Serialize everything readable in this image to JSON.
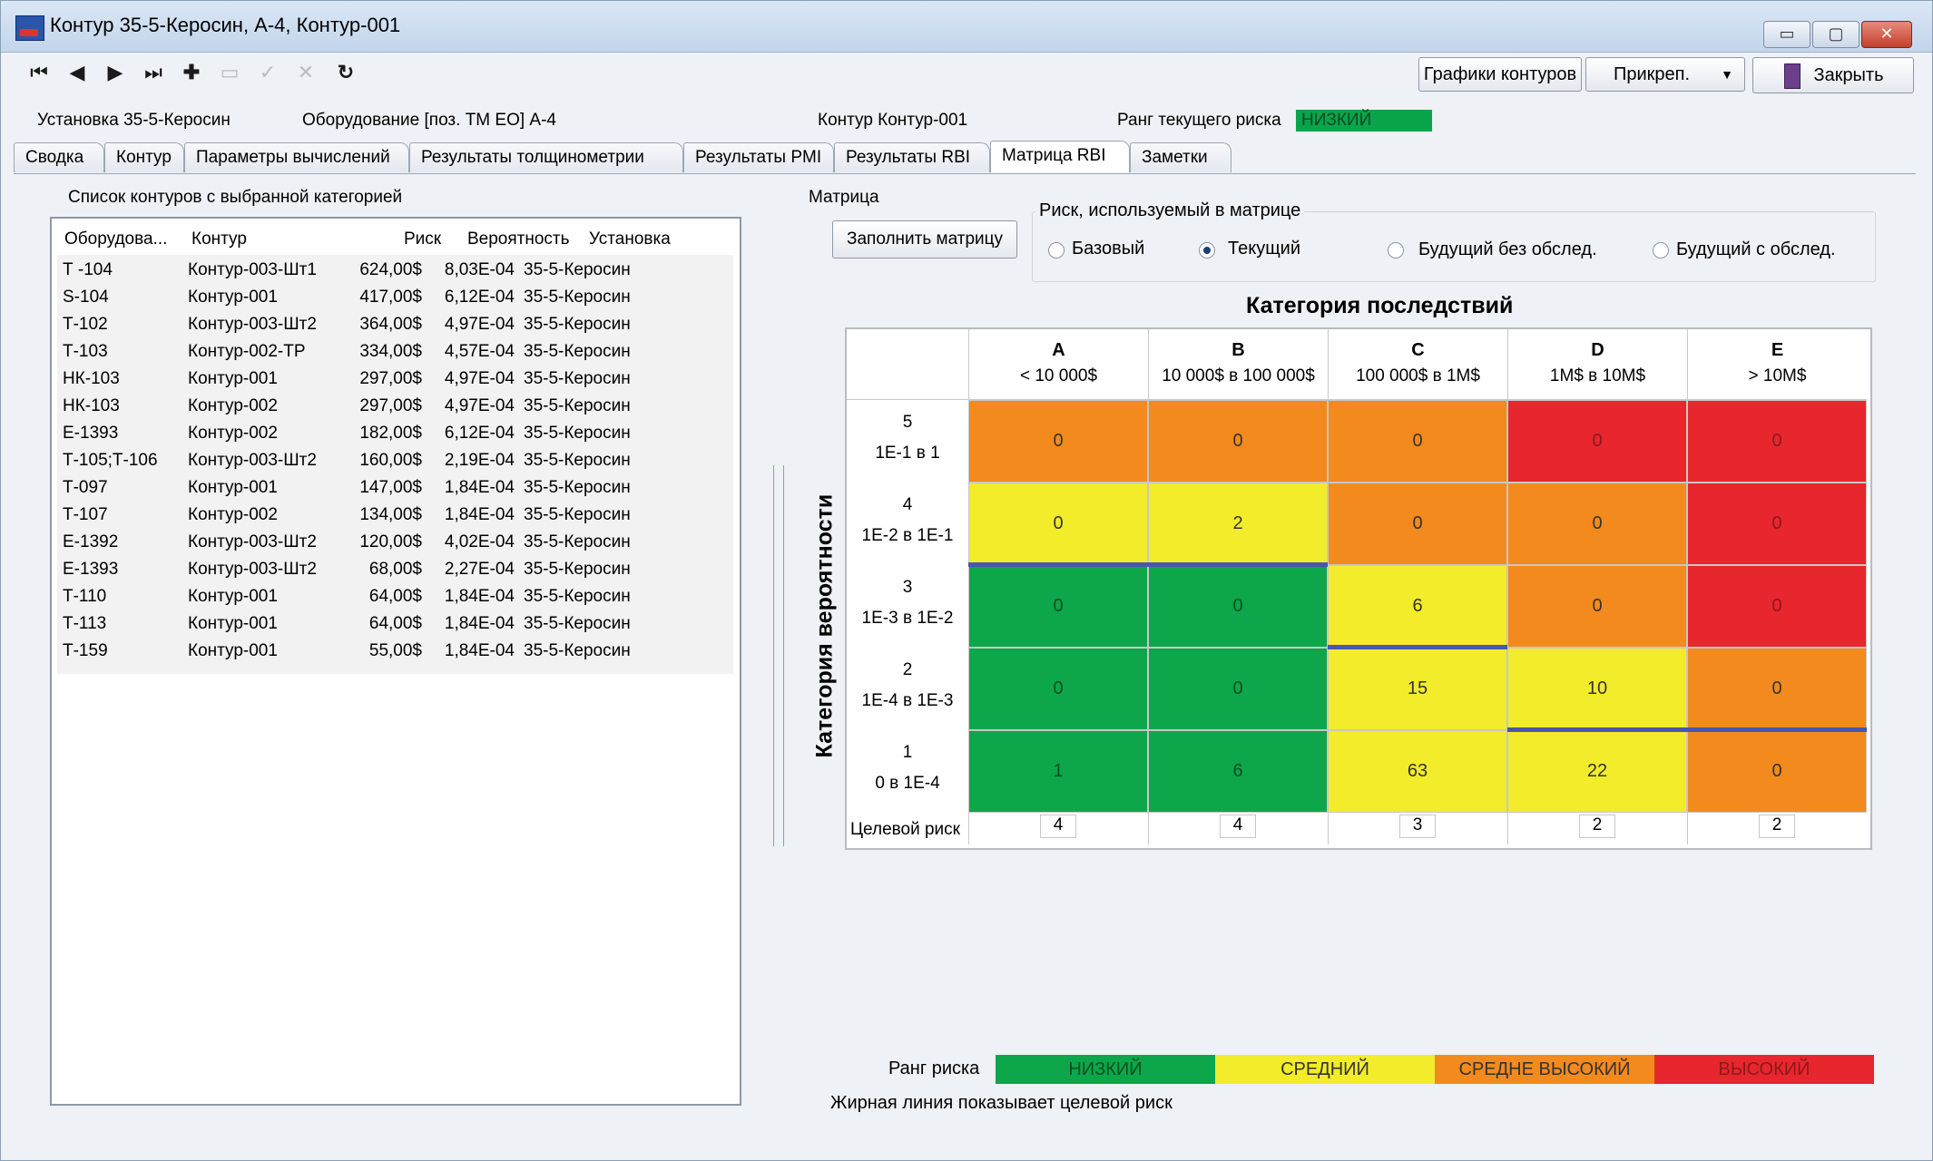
{
  "window": {
    "title": "Контур 35-5-Керосин, А-4, Контур-001",
    "controls": [
      "▭",
      "▢",
      "✕"
    ]
  },
  "toolbar": {
    "icons": [
      "first-icon",
      "prev-icon",
      "next-icon",
      "last-icon",
      "add-icon",
      "remove-icon",
      "confirm-icon",
      "cancel-icon",
      "refresh-icon"
    ],
    "charts_label": "Графики контуров",
    "attach_label": "Прикреп.",
    "close_label": "Закрыть"
  },
  "info": {
    "install": "Установка 35-5-Керосин",
    "equipment": "Оборудование [поз. ТМ ЕО] А-4",
    "contour": "Контур Контур-001",
    "risk_rank_label": "Ранг текущего риска",
    "risk_rank_value": "НИЗКИЙ"
  },
  "tabs": [
    "Сводка",
    "Контур",
    "Параметры вычислений",
    "Результаты толщинометрии",
    "Результаты PMI",
    "Результаты RBI",
    "Матрица RBI",
    "Заметки"
  ],
  "active_tab": "Матрица RBI",
  "list": {
    "title": "Список контуров с выбранной категорией",
    "headers": [
      "Оборудова...",
      "Контур",
      "Риск",
      "Вероятность",
      "Установка"
    ],
    "rows": [
      [
        "Т -104",
        "Контур-003-Шт1",
        "624,00$",
        "8,03E-04",
        "35-5-Керосин"
      ],
      [
        "S-104",
        "Контур-001",
        "417,00$",
        "6,12E-04",
        "35-5-Керосин"
      ],
      [
        "Т-102",
        "Контур-003-Шт2",
        "364,00$",
        "4,97E-04",
        "35-5-Керосин"
      ],
      [
        "Т-103",
        "Контур-002-ТР",
        "334,00$",
        "4,57E-04",
        "35-5-Керосин"
      ],
      [
        "НК-103",
        "Контур-001",
        "297,00$",
        "4,97E-04",
        "35-5-Керосин"
      ],
      [
        "НК-103",
        "Контур-002",
        "297,00$",
        "4,97E-04",
        "35-5-Керосин"
      ],
      [
        "Е-1393",
        "Контур-002",
        "182,00$",
        "6,12E-04",
        "35-5-Керосин"
      ],
      [
        "Т-105;Т-106",
        "Контур-003-Шт2",
        "160,00$",
        "2,19E-04",
        "35-5-Керосин"
      ],
      [
        "Т-097",
        "Контур-001",
        "147,00$",
        "1,84E-04",
        "35-5-Керосин"
      ],
      [
        "Т-107",
        "Контур-002",
        "134,00$",
        "1,84E-04",
        "35-5-Керосин"
      ],
      [
        "Е-1392",
        "Контур-003-Шт2",
        "120,00$",
        "4,02E-04",
        "35-5-Керосин"
      ],
      [
        "Е-1393",
        "Контур-003-Шт2",
        "68,00$",
        "2,27E-04",
        "35-5-Керосин"
      ],
      [
        "Т-110",
        "Контур-001",
        "64,00$",
        "1,84E-04",
        "35-5-Керосин"
      ],
      [
        "Т-113",
        "Контур-001",
        "64,00$",
        "1,84E-04",
        "35-5-Керосин"
      ],
      [
        "Т-159",
        "Контур-001",
        "55,00$",
        "1,84E-04",
        "35-5-Керосин"
      ]
    ]
  },
  "matrix_panel": {
    "title": "Матрица",
    "fill_button": "Заполнить матрицу",
    "risk_group_title": "Риск, используемый в матрице",
    "radios": [
      {
        "label": "Базовый",
        "checked": false
      },
      {
        "label": "Текущий",
        "checked": true
      },
      {
        "label": "Будущий без обслед.",
        "checked": false
      },
      {
        "label": "Будущий с обслед.",
        "checked": false
      }
    ],
    "consequence_title": "Категория последствий",
    "probability_title": "Категория вероятности",
    "columns": [
      {
        "letter": "A",
        "range": "< 10 000$"
      },
      {
        "letter": "B",
        "range": "10 000$ в 100 000$"
      },
      {
        "letter": "C",
        "range": "100 000$ в 1M$"
      },
      {
        "letter": "D",
        "range": "1M$ в 10M$"
      },
      {
        "letter": "E",
        "range": "> 10M$"
      }
    ],
    "rows": [
      {
        "num": "5",
        "range": "1E-1 в 1",
        "values": [
          "0",
          "0",
          "0",
          "0",
          "0"
        ],
        "levels": [
          "mh",
          "mh",
          "mh",
          "h",
          "h"
        ]
      },
      {
        "num": "4",
        "range": "1E-2 в 1E-1",
        "values": [
          "0",
          "2",
          "0",
          "0",
          "0"
        ],
        "levels": [
          "m",
          "m",
          "mh",
          "mh",
          "h"
        ]
      },
      {
        "num": "3",
        "range": "1E-3 в 1E-2",
        "values": [
          "0",
          "0",
          "6",
          "0",
          "0"
        ],
        "levels": [
          "l",
          "l",
          "m",
          "mh",
          "h"
        ]
      },
      {
        "num": "2",
        "range": "1E-4 в 1E-3",
        "values": [
          "0",
          "0",
          "15",
          "10",
          "0"
        ],
        "levels": [
          "l",
          "l",
          "m",
          "m",
          "mh"
        ]
      },
      {
        "num": "1",
        "range": "0 в 1E-4",
        "values": [
          "1",
          "6",
          "63",
          "22",
          "0"
        ],
        "levels": [
          "l",
          "l",
          "m",
          "m",
          "mh"
        ]
      }
    ],
    "target_label": "Целевой риск",
    "targets": [
      "4",
      "4",
      "3",
      "2",
      "2"
    ],
    "legend_label": "Ранг риска",
    "legend": [
      {
        "label": "НИЗКИЙ",
        "color": "#0da64a"
      },
      {
        "label": "СРЕДНИЙ",
        "color": "#f2ec2a"
      },
      {
        "label": "СРЕДНЕ ВЫСОКИЙ",
        "color": "#f28a1e"
      },
      {
        "label": "ВЫСОКИЙ",
        "color": "#e8262d"
      }
    ],
    "note": "Жирная линия показывает целевой риск"
  },
  "colors": {
    "l": "#0da64a",
    "m": "#f2ec2a",
    "mh": "#f28a1e",
    "h": "#e8262d",
    "target_line": "#4a55b0"
  }
}
